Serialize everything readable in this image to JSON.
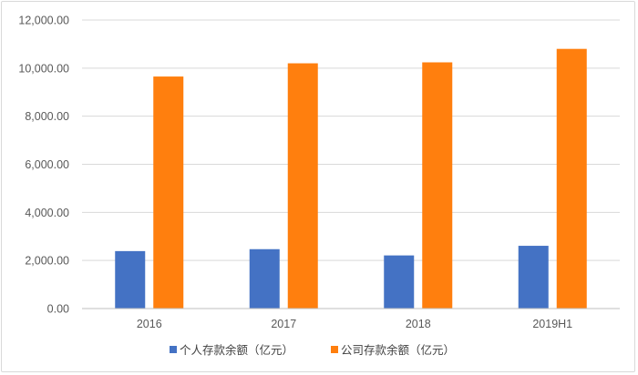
{
  "chart_data": {
    "type": "bar",
    "categories": [
      "2016",
      "2017",
      "2018",
      "2019H1"
    ],
    "series": [
      {
        "name": "个人存款余额（亿元）",
        "values": [
          2390,
          2470,
          2210,
          2610
        ],
        "color": "#4472c4"
      },
      {
        "name": "公司存款余额（亿元）",
        "values": [
          9650,
          10200,
          10240,
          10800
        ],
        "color": "#ff7f0e"
      }
    ],
    "yticks": [
      "0.00",
      "2,000.00",
      "4,000.00",
      "6,000.00",
      "8,000.00",
      "10,000.00",
      "12,000.00"
    ],
    "ylim": [
      0,
      12000
    ],
    "grid": true,
    "legend": "bottom-center",
    "title": "",
    "xlabel": "",
    "ylabel": ""
  }
}
